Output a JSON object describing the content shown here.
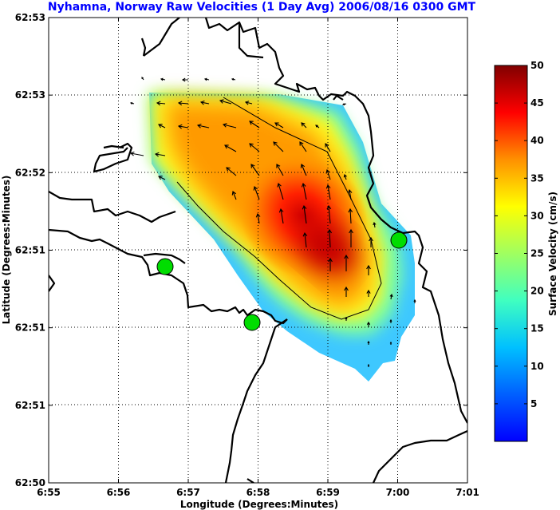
{
  "title": "Nyhamna, Norway Raw Velocities (1 Day Avg) 2006/08/16 0300 GMT",
  "chart_data": {
    "type": "heatmap",
    "title": "Nyhamna, Norway Raw Velocities (1 Day Avg) 2006/08/16 0300 GMT",
    "xlabel": "Longitude (Degrees:Minutes)",
    "ylabel": "Latitude (Degrees:Minutes)",
    "x_ticks": [
      "6:55",
      "6:56",
      "6:57",
      "6:58",
      "6:59",
      "7:00",
      "7:01"
    ],
    "y_ticks": [
      "62:50",
      "62:51",
      "62:51",
      "62:51",
      "62:52",
      "62:53",
      "62:53"
    ],
    "grid": true,
    "colorbar": {
      "label": "Surface Velocity (cm/s)",
      "range": [
        0,
        50
      ],
      "ticks": [
        "5",
        "10",
        "15",
        "20",
        "25",
        "30",
        "35",
        "40",
        "45",
        "50"
      ],
      "colormap": "jet"
    },
    "contour_level_cm_s": 30,
    "stations": 3,
    "max_speed_cm_s": 48
  },
  "colors": {
    "title": "#0000ff",
    "station": "#00dd00",
    "coastline": "#000000"
  }
}
